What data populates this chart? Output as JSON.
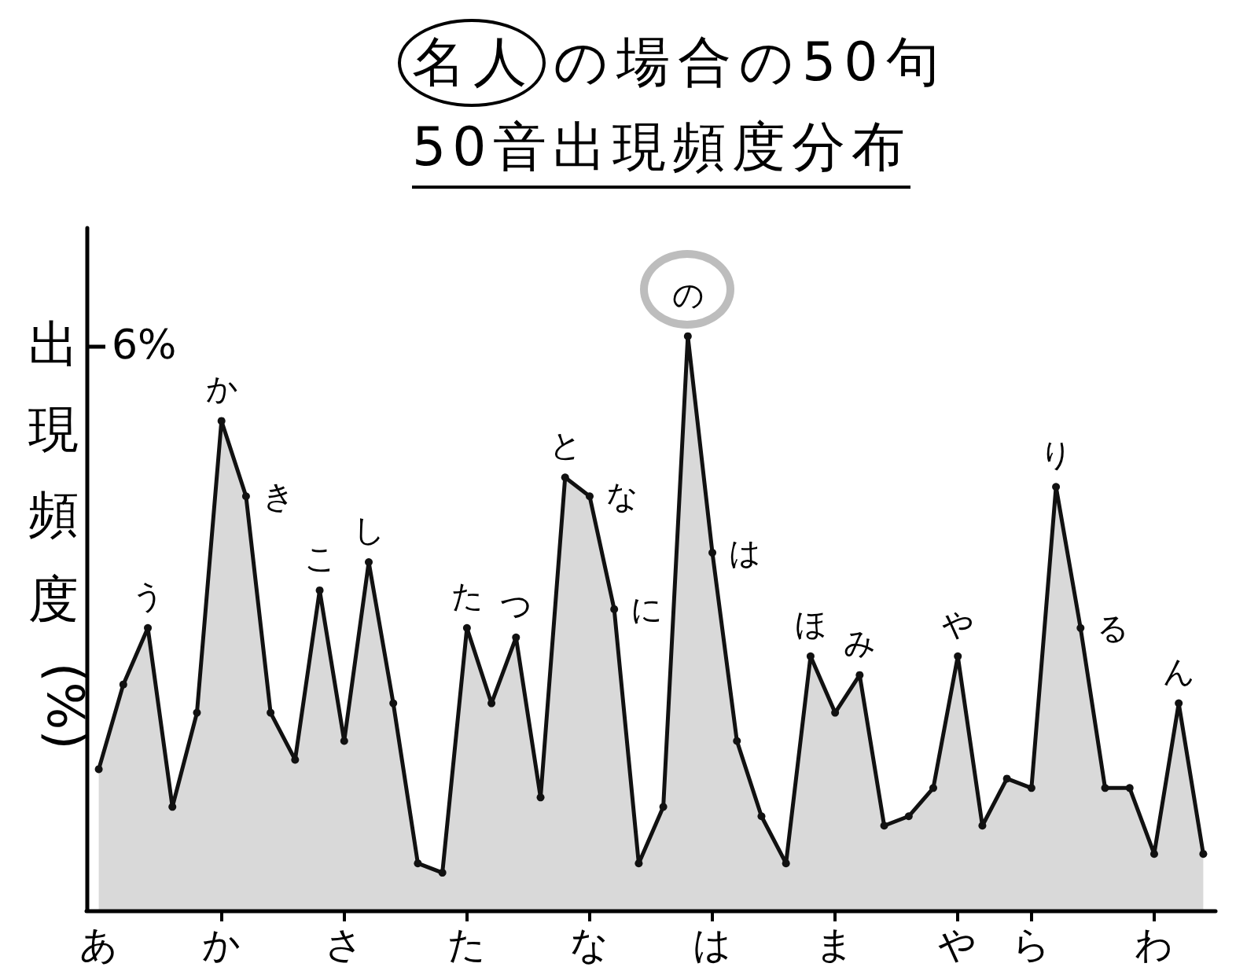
{
  "chart_data": {
    "type": "area",
    "title": "名人の場合の50句",
    "subtitle": "50音出現頻度分布",
    "ylabel": "出現頻度(%)",
    "categories": [
      "あ",
      null,
      null,
      null,
      null,
      "か",
      null,
      null,
      null,
      null,
      "さ",
      null,
      null,
      null,
      null,
      "た",
      null,
      null,
      null,
      null,
      "な",
      null,
      null,
      null,
      null,
      "は",
      null,
      null,
      null,
      null,
      "ま",
      null,
      null,
      null,
      null,
      "や",
      null,
      null,
      "ら",
      null,
      null,
      null,
      null,
      "わ",
      null,
      null
    ],
    "values": [
      1.5,
      2.4,
      3.0,
      1.1,
      2.1,
      5.2,
      4.4,
      2.1,
      1.6,
      3.4,
      1.8,
      3.7,
      2.2,
      0.5,
      0.4,
      3.0,
      2.2,
      2.9,
      1.2,
      4.6,
      4.4,
      3.2,
      0.5,
      1.1,
      6.1,
      3.8,
      1.8,
      1.0,
      0.5,
      2.7,
      2.1,
      2.5,
      0.9,
      1.0,
      1.3,
      2.7,
      0.9,
      1.4,
      1.3,
      4.5,
      3.0,
      1.3,
      1.3,
      0.6,
      2.2,
      0.6
    ],
    "value_labels": [
      null,
      null,
      "う",
      null,
      null,
      "か",
      "き",
      null,
      null,
      "こ",
      null,
      "し",
      null,
      null,
      null,
      "た",
      null,
      "つ",
      null,
      "と",
      "な",
      "に",
      null,
      null,
      "の",
      "は",
      null,
      null,
      null,
      "ほ",
      null,
      "み",
      null,
      null,
      null,
      "や",
      null,
      null,
      null,
      "り",
      "る",
      null,
      null,
      null,
      "ん",
      null
    ],
    "color": "#111111",
    "ylim": [
      0,
      7.25
    ],
    "yticks": [
      {
        "value": 6,
        "label": "6%"
      }
    ],
    "marker": "circle",
    "line_style": "solid"
  }
}
